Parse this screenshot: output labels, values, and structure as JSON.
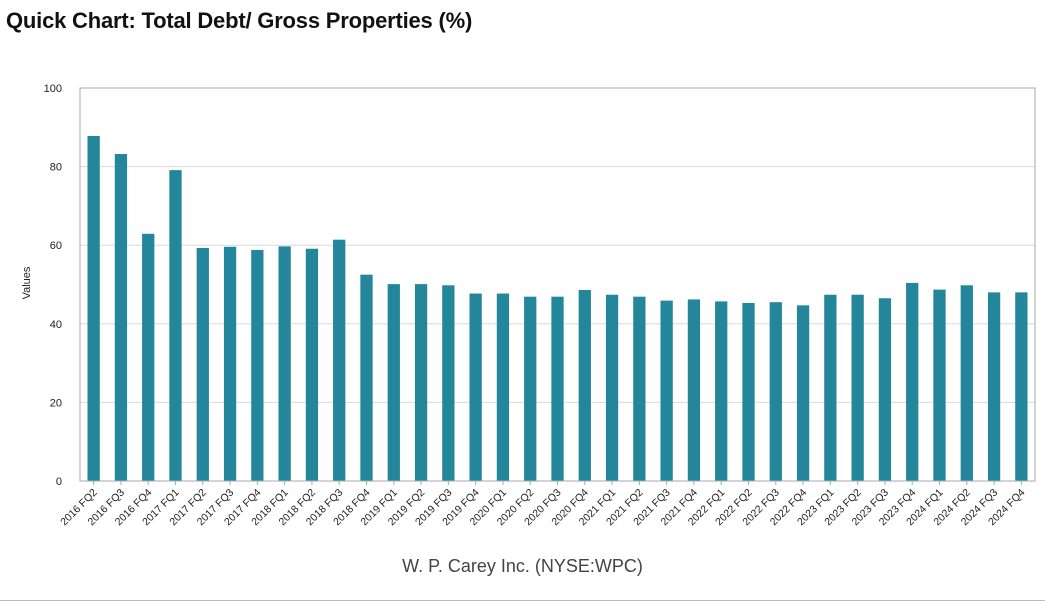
{
  "header": {
    "title": "Quick Chart: Total Debt/ Gross Properties (%)"
  },
  "footer": {
    "company": "W. P. Carey Inc. (NYSE:WPC)"
  },
  "colors": {
    "bar": "#24869b",
    "grid": "#d9d9d9",
    "axis": "#aaaaaa"
  },
  "chart_data": {
    "type": "bar",
    "title": "Quick Chart: Total Debt/ Gross Properties (%)",
    "xlabel": "",
    "ylabel": "Values",
    "ylim": [
      0,
      100
    ],
    "yticks": [
      0,
      20,
      40,
      60,
      80,
      100
    ],
    "grid": true,
    "categories": [
      "2016 FQ2",
      "2016 FQ3",
      "2016 FQ4",
      "2017 FQ1",
      "2017 FQ2",
      "2017 FQ3",
      "2017 FQ4",
      "2018 FQ1",
      "2018 FQ2",
      "2018 FQ3",
      "2018 FQ4",
      "2019 FQ1",
      "2019 FQ2",
      "2019 FQ3",
      "2019 FQ4",
      "2020 FQ1",
      "2020 FQ2",
      "2020 FQ3",
      "2020 FQ4",
      "2021 FQ1",
      "2021 FQ2",
      "2021 FQ3",
      "2021 FQ4",
      "2022 FQ1",
      "2022 FQ2",
      "2022 FQ3",
      "2022 FQ4",
      "2023 FQ1",
      "2023 FQ2",
      "2023 FQ3",
      "2023 FQ4",
      "2024 FQ1",
      "2024 FQ2",
      "2024 FQ3",
      "2024 FQ4"
    ],
    "values": [
      87.8,
      83.2,
      62.9,
      79.1,
      59.3,
      59.6,
      58.8,
      59.7,
      59.1,
      61.4,
      52.5,
      50.1,
      50.1,
      49.8,
      47.7,
      47.7,
      46.9,
      46.9,
      48.6,
      47.4,
      46.9,
      45.9,
      46.2,
      45.7,
      45.3,
      45.5,
      44.7,
      47.4,
      47.4,
      46.5,
      50.4,
      48.7,
      49.8,
      48.0,
      48.0
    ]
  }
}
